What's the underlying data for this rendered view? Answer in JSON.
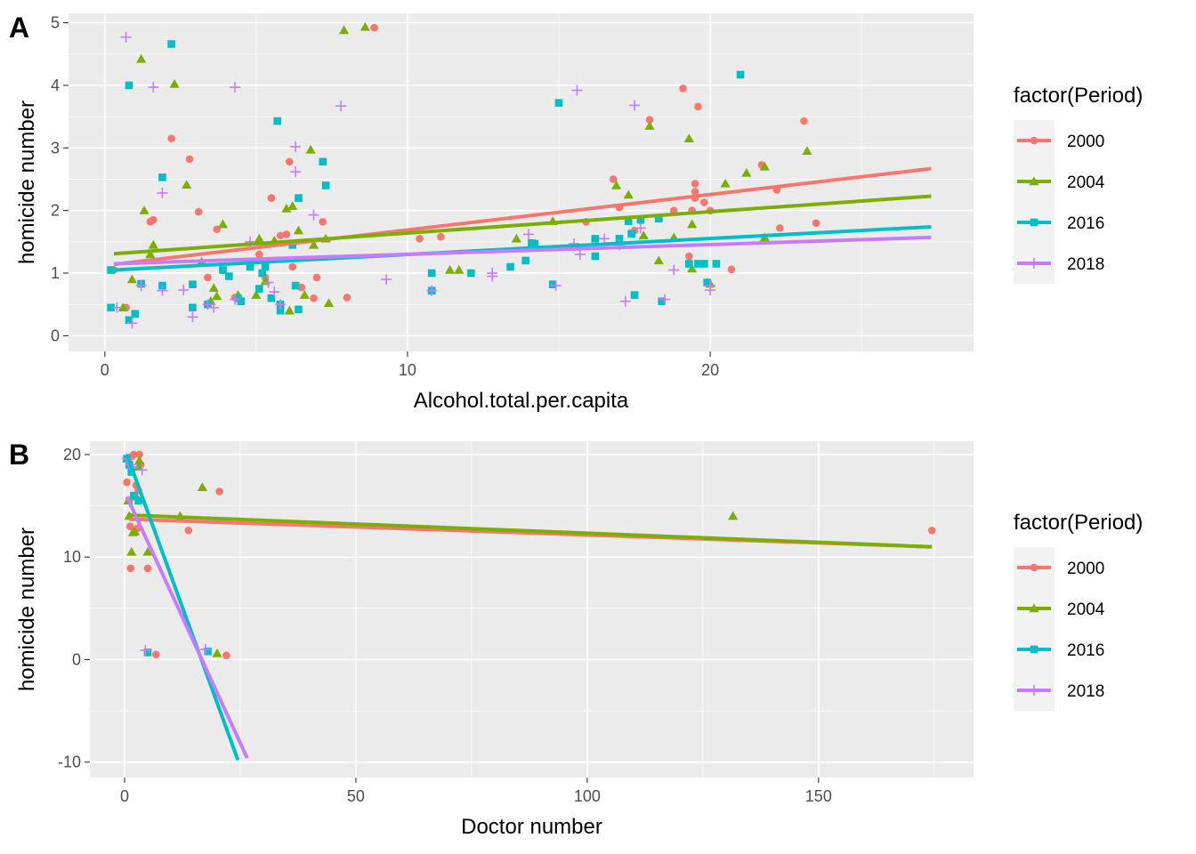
{
  "legend": {
    "title": "factor(Period)",
    "entries": [
      {
        "label": "2000",
        "color": "#F8766D",
        "shape": "circle"
      },
      {
        "label": "2004",
        "color": "#7CAE00",
        "shape": "triangle"
      },
      {
        "label": "2016",
        "color": "#00BFC4",
        "shape": "square"
      },
      {
        "label": "2018",
        "color": "#C77CFF",
        "shape": "plus"
      }
    ]
  },
  "chart_data": [
    {
      "panel_tag": "A",
      "type": "scatter",
      "xlabel": "Alcohol.total.per.capita",
      "ylabel": "homicide number",
      "xlim": [
        -1.2,
        28.7
      ],
      "ylim": [
        -0.25,
        5.15
      ],
      "xticks": [
        0,
        10,
        20
      ],
      "yticks": [
        0,
        1,
        2,
        3,
        4,
        5
      ],
      "grid": true,
      "legend_position": "right",
      "series": [
        {
          "name": "2000",
          "points": [
            [
              0.3,
              1.05
            ],
            [
              0.7,
              0.45
            ],
            [
              1.5,
              1.82
            ],
            [
              1.6,
              1.85
            ],
            [
              2.2,
              3.15
            ],
            [
              2.8,
              2.82
            ],
            [
              3.1,
              1.98
            ],
            [
              3.4,
              0.93
            ],
            [
              3.7,
              1.7
            ],
            [
              4.3,
              0.61
            ],
            [
              5.1,
              1.3
            ],
            [
              5.3,
              0.93
            ],
            [
              5.5,
              2.2
            ],
            [
              5.8,
              1.6
            ],
            [
              6.0,
              1.62
            ],
            [
              6.1,
              2.78
            ],
            [
              6.2,
              1.1
            ],
            [
              6.5,
              0.77
            ],
            [
              6.9,
              0.6
            ],
            [
              7.0,
              0.93
            ],
            [
              7.2,
              1.82
            ],
            [
              8.0,
              0.61
            ],
            [
              8.9,
              4.92
            ],
            [
              10.4,
              1.55
            ],
            [
              11.1,
              1.58
            ],
            [
              15.9,
              1.82
            ],
            [
              16.8,
              2.5
            ],
            [
              17.0,
              2.05
            ],
            [
              17.5,
              1.68
            ],
            [
              18.0,
              3.45
            ],
            [
              18.8,
              2.0
            ],
            [
              19.1,
              3.95
            ],
            [
              19.3,
              1.27
            ],
            [
              19.4,
              2.0
            ],
            [
              19.5,
              2.2
            ],
            [
              19.5,
              2.43
            ],
            [
              19.5,
              2.3
            ],
            [
              19.6,
              3.66
            ],
            [
              19.8,
              2.13
            ],
            [
              20.0,
              2.0
            ],
            [
              20.7,
              1.06
            ],
            [
              21.7,
              2.73
            ],
            [
              22.2,
              2.33
            ],
            [
              22.3,
              1.72
            ],
            [
              23.1,
              3.43
            ],
            [
              23.5,
              1.8
            ]
          ],
          "trend": [
            [
              0.3,
              1.14
            ],
            [
              27.3,
              2.67
            ]
          ]
        },
        {
          "name": "2004",
          "points": [
            [
              0.6,
              0.45
            ],
            [
              0.9,
              0.9
            ],
            [
              1.2,
              4.42
            ],
            [
              1.3,
              2.0
            ],
            [
              1.5,
              1.3
            ],
            [
              1.6,
              1.45
            ],
            [
              2.3,
              4.02
            ],
            [
              2.7,
              2.41
            ],
            [
              3.2,
              1.18
            ],
            [
              3.5,
              0.55
            ],
            [
              3.6,
              0.76
            ],
            [
              3.7,
              0.63
            ],
            [
              3.9,
              1.78
            ],
            [
              4.4,
              0.65
            ],
            [
              5.0,
              0.65
            ],
            [
              5.1,
              1.55
            ],
            [
              5.3,
              0.87
            ],
            [
              5.6,
              1.52
            ],
            [
              6.0,
              2.03
            ],
            [
              6.1,
              0.4
            ],
            [
              6.2,
              2.07
            ],
            [
              6.4,
              1.68
            ],
            [
              6.6,
              0.65
            ],
            [
              6.8,
              2.97
            ],
            [
              6.9,
              1.45
            ],
            [
              7.3,
              1.55
            ],
            [
              7.4,
              0.52
            ],
            [
              7.9,
              4.88
            ],
            [
              8.6,
              4.93
            ],
            [
              11.4,
              1.05
            ],
            [
              11.7,
              1.05
            ],
            [
              13.6,
              1.55
            ],
            [
              14.8,
              1.83
            ],
            [
              16.9,
              2.4
            ],
            [
              17.3,
              2.25
            ],
            [
              17.8,
              1.6
            ],
            [
              18.0,
              3.35
            ],
            [
              18.3,
              1.2
            ],
            [
              18.8,
              1.57
            ],
            [
              19.3,
              3.15
            ],
            [
              19.4,
              1.78
            ],
            [
              19.4,
              1.07
            ],
            [
              20.0,
              0.83
            ],
            [
              20.5,
              2.43
            ],
            [
              21.2,
              2.6
            ],
            [
              21.8,
              2.7
            ],
            [
              21.8,
              1.57
            ],
            [
              23.2,
              2.95
            ]
          ],
          "trend": [
            [
              0.3,
              1.31
            ],
            [
              27.3,
              2.23
            ]
          ]
        },
        {
          "name": "2016",
          "points": [
            [
              0.2,
              1.05
            ],
            [
              0.2,
              0.45
            ],
            [
              0.8,
              0.25
            ],
            [
              0.8,
              4.0
            ],
            [
              1.0,
              0.35
            ],
            [
              1.2,
              0.83
            ],
            [
              1.9,
              2.53
            ],
            [
              1.9,
              0.8
            ],
            [
              2.2,
              4.66
            ],
            [
              2.9,
              0.45
            ],
            [
              2.9,
              0.82
            ],
            [
              3.4,
              0.5
            ],
            [
              3.9,
              1.05
            ],
            [
              4.1,
              0.95
            ],
            [
              4.4,
              0.6
            ],
            [
              4.5,
              0.55
            ],
            [
              4.8,
              1.1
            ],
            [
              5.1,
              0.75
            ],
            [
              5.2,
              1.0
            ],
            [
              5.3,
              1.1
            ],
            [
              5.5,
              0.6
            ],
            [
              5.7,
              3.43
            ],
            [
              5.8,
              0.5
            ],
            [
              5.8,
              0.4
            ],
            [
              6.2,
              1.45
            ],
            [
              6.3,
              0.8
            ],
            [
              6.4,
              2.2
            ],
            [
              6.4,
              0.42
            ],
            [
              7.2,
              2.78
            ],
            [
              7.3,
              2.4
            ],
            [
              10.8,
              1.0
            ],
            [
              10.8,
              0.72
            ],
            [
              12.1,
              1.0
            ],
            [
              13.4,
              1.1
            ],
            [
              13.9,
              1.2
            ],
            [
              14.1,
              1.48
            ],
            [
              14.2,
              1.47
            ],
            [
              14.8,
              0.82
            ],
            [
              15.0,
              3.72
            ],
            [
              16.2,
              1.27
            ],
            [
              16.2,
              1.55
            ],
            [
              17.0,
              1.55
            ],
            [
              17.3,
              1.83
            ],
            [
              17.4,
              1.63
            ],
            [
              17.5,
              0.65
            ],
            [
              17.7,
              1.85
            ],
            [
              18.3,
              1.87
            ],
            [
              18.4,
              0.55
            ],
            [
              19.3,
              1.15
            ],
            [
              19.6,
              1.15
            ],
            [
              19.8,
              1.15
            ],
            [
              19.9,
              0.85
            ],
            [
              20.2,
              1.15
            ],
            [
              21.0,
              4.17
            ]
          ],
          "trend": [
            [
              0.3,
              1.05
            ],
            [
              27.3,
              1.74
            ]
          ]
        },
        {
          "name": "2018",
          "points": [
            [
              0.4,
              0.45
            ],
            [
              0.7,
              4.77
            ],
            [
              0.9,
              0.2
            ],
            [
              1.2,
              0.8
            ],
            [
              1.6,
              3.97
            ],
            [
              1.9,
              2.28
            ],
            [
              1.9,
              0.72
            ],
            [
              2.6,
              0.73
            ],
            [
              2.9,
              0.3
            ],
            [
              3.4,
              0.5
            ],
            [
              3.6,
              0.45
            ],
            [
              4.3,
              3.97
            ],
            [
              4.3,
              0.58
            ],
            [
              4.8,
              1.5
            ],
            [
              5.4,
              0.85
            ],
            [
              5.6,
              0.7
            ],
            [
              5.8,
              0.5
            ],
            [
              6.3,
              3.02
            ],
            [
              6.3,
              2.62
            ],
            [
              6.9,
              1.93
            ],
            [
              7.8,
              3.67
            ],
            [
              9.3,
              0.9
            ],
            [
              10.8,
              0.72
            ],
            [
              12.8,
              0.95
            ],
            [
              12.8,
              1.0
            ],
            [
              14.0,
              1.62
            ],
            [
              14.9,
              0.8
            ],
            [
              15.5,
              1.47
            ],
            [
              15.6,
              3.92
            ],
            [
              15.7,
              1.3
            ],
            [
              16.5,
              1.55
            ],
            [
              17.0,
              1.45
            ],
            [
              17.2,
              0.55
            ],
            [
              17.5,
              3.68
            ],
            [
              17.7,
              1.72
            ],
            [
              18.5,
              0.58
            ],
            [
              18.8,
              1.05
            ],
            [
              20.0,
              0.8
            ],
            [
              20.0,
              0.73
            ]
          ],
          "trend": [
            [
              0.3,
              1.15
            ],
            [
              27.3,
              1.57
            ]
          ]
        }
      ]
    },
    {
      "panel_tag": "B",
      "type": "scatter",
      "xlabel": "Doctor number",
      "ylabel": "homicide number",
      "xlim": [
        -7.5,
        183.5
      ],
      "ylim": [
        -11.5,
        21.3
      ],
      "xticks": [
        0,
        50,
        100,
        150
      ],
      "yticks": [
        -10,
        0,
        10,
        20
      ],
      "grid": true,
      "legend_position": "right",
      "series": [
        {
          "name": "2000",
          "points": [
            [
              0.5,
              17.3
            ],
            [
              1.0,
              15.5
            ],
            [
              1.2,
              13.0
            ],
            [
              1.3,
              8.9
            ],
            [
              1.5,
              19.8
            ],
            [
              2.0,
              20.0
            ],
            [
              2.5,
              17.0
            ],
            [
              2.8,
              12.8
            ],
            [
              3.0,
              16.5
            ],
            [
              3.2,
              20.0
            ],
            [
              3.5,
              19.0
            ],
            [
              5.0,
              8.9
            ],
            [
              6.8,
              0.5
            ],
            [
              13.8,
              12.6
            ],
            [
              20.5,
              16.4
            ],
            [
              22.0,
              0.4
            ],
            [
              174.5,
              12.6
            ]
          ],
          "trend": [
            [
              1.0,
              13.7
            ],
            [
              174.5,
              11.0
            ]
          ]
        },
        {
          "name": "2004",
          "points": [
            [
              0.5,
              19.6
            ],
            [
              0.8,
              15.5
            ],
            [
              1.0,
              14.0
            ],
            [
              1.5,
              10.5
            ],
            [
              1.8,
              12.4
            ],
            [
              2.2,
              12.5
            ],
            [
              2.5,
              15.9
            ],
            [
              3.0,
              18.8
            ],
            [
              3.2,
              19.4
            ],
            [
              5.0,
              10.5
            ],
            [
              12.0,
              14.0
            ],
            [
              16.8,
              16.8
            ],
            [
              20.0,
              0.6
            ],
            [
              131.5,
              14.0
            ]
          ],
          "trend": [
            [
              1.0,
              14.1
            ],
            [
              174.5,
              11.0
            ]
          ]
        },
        {
          "name": "2016",
          "points": [
            [
              0.5,
              19.6
            ],
            [
              1.0,
              19.0
            ],
            [
              1.5,
              18.3
            ],
            [
              2.0,
              16.0
            ],
            [
              3.0,
              15.5
            ],
            [
              5.0,
              0.7
            ],
            [
              18.0,
              0.8
            ]
          ],
          "trend": [
            [
              0.5,
              20.0
            ],
            [
              24.5,
              -9.8
            ]
          ]
        },
        {
          "name": "2018",
          "points": [
            [
              0.5,
              19.6
            ],
            [
              1.2,
              19.0
            ],
            [
              1.8,
              18.8
            ],
            [
              3.8,
              18.5
            ],
            [
              4.5,
              0.9
            ],
            [
              17.5,
              1.0
            ]
          ],
          "trend": [
            [
              0.5,
              15.9
            ],
            [
              26.5,
              -9.6
            ]
          ]
        }
      ]
    }
  ]
}
